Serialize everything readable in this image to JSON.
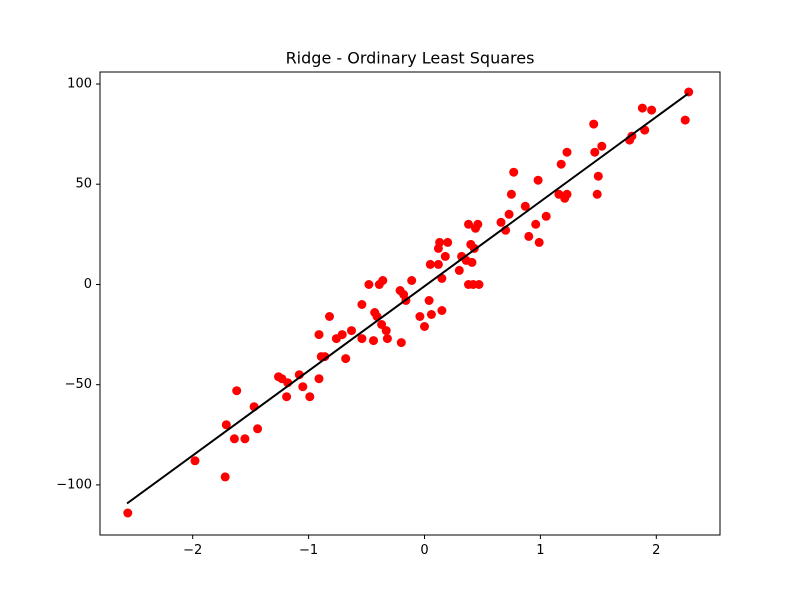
{
  "chart_data": {
    "type": "scatter",
    "title": "Ridge - Ordinary Least Squares",
    "xlabel": "",
    "ylabel": "",
    "xlim": [
      -2.8,
      2.55
    ],
    "ylim": [
      -125,
      106
    ],
    "xticks": [
      {
        "value": -2,
        "label": "−2"
      },
      {
        "value": -1,
        "label": "−1"
      },
      {
        "value": 0,
        "label": "0"
      },
      {
        "value": 1,
        "label": "1"
      },
      {
        "value": 2,
        "label": "2"
      }
    ],
    "yticks": [
      {
        "value": -100,
        "label": "−100"
      },
      {
        "value": -50,
        "label": "−50"
      },
      {
        "value": 0,
        "label": "0"
      },
      {
        "value": 50,
        "label": "50"
      },
      {
        "value": 100,
        "label": "100"
      }
    ],
    "grid": false,
    "colors": {
      "points": "#ff0000",
      "fit_line": "#000000",
      "axes": "#000000"
    },
    "series": [
      {
        "kind": "scatter",
        "marker": "circle",
        "points": [
          [
            -2.56,
            -114
          ],
          [
            -1.98,
            -88
          ],
          [
            -1.72,
            -96
          ],
          [
            -1.71,
            -70
          ],
          [
            -1.64,
            -77
          ],
          [
            -1.62,
            -53
          ],
          [
            -1.55,
            -77
          ],
          [
            -1.47,
            -61
          ],
          [
            -1.44,
            -72
          ],
          [
            -1.26,
            -46
          ],
          [
            -1.23,
            -47
          ],
          [
            -1.19,
            -56
          ],
          [
            -1.18,
            -49
          ],
          [
            -1.08,
            -45
          ],
          [
            -1.05,
            -51
          ],
          [
            -0.99,
            -56
          ],
          [
            -0.91,
            -47
          ],
          [
            -0.91,
            -25
          ],
          [
            -0.89,
            -36
          ],
          [
            -0.86,
            -36
          ],
          [
            -0.82,
            -16
          ],
          [
            -0.76,
            -27
          ],
          [
            -0.71,
            -25
          ],
          [
            -0.68,
            -37
          ],
          [
            -0.63,
            -23
          ],
          [
            -0.54,
            -27
          ],
          [
            -0.54,
            -10
          ],
          [
            -0.48,
            0
          ],
          [
            -0.44,
            -28
          ],
          [
            -0.43,
            -14
          ],
          [
            -0.41,
            -16
          ],
          [
            -0.39,
            0
          ],
          [
            -0.37,
            -20
          ],
          [
            -0.36,
            2
          ],
          [
            -0.33,
            -23
          ],
          [
            -0.32,
            -27
          ],
          [
            -0.21,
            -3
          ],
          [
            -0.2,
            -29
          ],
          [
            -0.18,
            -5
          ],
          [
            -0.16,
            -8
          ],
          [
            -0.11,
            2
          ],
          [
            -0.04,
            -16
          ],
          [
            0.0,
            -21
          ],
          [
            0.04,
            -8
          ],
          [
            0.05,
            10
          ],
          [
            0.06,
            -15
          ],
          [
            0.12,
            10
          ],
          [
            0.12,
            18
          ],
          [
            0.13,
            21
          ],
          [
            0.15,
            3
          ],
          [
            0.15,
            -13
          ],
          [
            0.18,
            14
          ],
          [
            0.2,
            21
          ],
          [
            0.3,
            7
          ],
          [
            0.32,
            14
          ],
          [
            0.36,
            12
          ],
          [
            0.38,
            30
          ],
          [
            0.38,
            0
          ],
          [
            0.4,
            20
          ],
          [
            0.41,
            11
          ],
          [
            0.42,
            0
          ],
          [
            0.43,
            18
          ],
          [
            0.44,
            28
          ],
          [
            0.46,
            30
          ],
          [
            0.47,
            0
          ],
          [
            0.66,
            31
          ],
          [
            0.7,
            27
          ],
          [
            0.73,
            35
          ],
          [
            0.75,
            45
          ],
          [
            0.77,
            56
          ],
          [
            0.87,
            39
          ],
          [
            0.9,
            24
          ],
          [
            0.96,
            30
          ],
          [
            0.98,
            52
          ],
          [
            0.99,
            21
          ],
          [
            1.05,
            34
          ],
          [
            1.16,
            45
          ],
          [
            1.18,
            60
          ],
          [
            1.21,
            43
          ],
          [
            1.23,
            66
          ],
          [
            1.23,
            45
          ],
          [
            1.46,
            80
          ],
          [
            1.47,
            66
          ],
          [
            1.49,
            45
          ],
          [
            1.5,
            54
          ],
          [
            1.53,
            69
          ],
          [
            1.77,
            72
          ],
          [
            1.79,
            74
          ],
          [
            1.88,
            88
          ],
          [
            1.9,
            77
          ],
          [
            1.96,
            87
          ],
          [
            2.25,
            82
          ],
          [
            2.28,
            96
          ]
        ]
      },
      {
        "kind": "line",
        "points": [
          [
            -2.56,
            -109
          ],
          [
            2.27,
            95
          ]
        ]
      }
    ]
  }
}
